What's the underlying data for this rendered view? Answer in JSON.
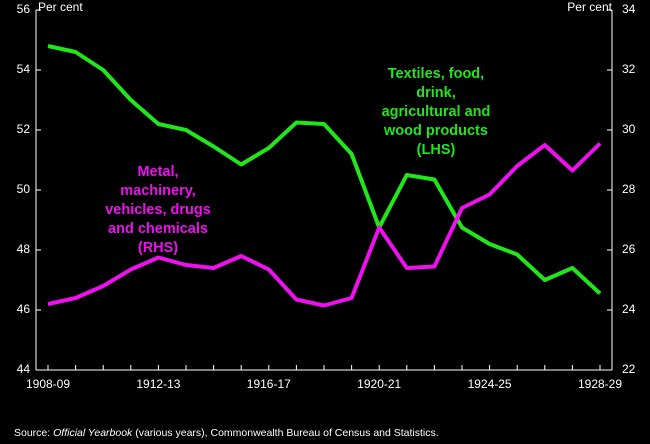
{
  "chart_data": {
    "type": "line",
    "categories": [
      "1908-09",
      null,
      null,
      null,
      "1912-13",
      null,
      null,
      null,
      "1916-17",
      null,
      null,
      null,
      "1920-21",
      null,
      null,
      null,
      "1924-25",
      null,
      null,
      null,
      "1928-29"
    ],
    "series": [
      {
        "name": "Textiles, food, drink, agricultural and wood products (LHS)",
        "label_lines": [
          "Textiles, food,",
          "drink,",
          "agricultural and",
          "wood products",
          "(LHS)"
        ],
        "color": "#22e61c",
        "axis": "y",
        "values": [
          54.8,
          54.6,
          54.0,
          53.0,
          52.2,
          52.0,
          51.45,
          50.85,
          51.4,
          52.25,
          52.2,
          51.2,
          48.75,
          50.5,
          50.35,
          48.75,
          48.2,
          47.85,
          47.0,
          47.4,
          46.55
        ]
      },
      {
        "name": "Metal, machinery, vehicles, drugs and chemicals (RHS)",
        "label_lines": [
          "Metal,",
          "machinery,",
          "vehicles, drugs",
          "and chemicals",
          "(RHS)"
        ],
        "color": "#ee10ee",
        "axis": "y2",
        "values": [
          24.2,
          24.4,
          24.8,
          25.35,
          25.75,
          25.5,
          25.4,
          25.8,
          25.35,
          24.35,
          24.15,
          24.4,
          26.75,
          25.4,
          25.45,
          27.4,
          27.85,
          28.8,
          29.5,
          28.65,
          29.55
        ]
      }
    ],
    "y_label": "Per cent",
    "y2_label": "Per cent",
    "ylim": [
      44,
      56
    ],
    "yticks": [
      44,
      46,
      48,
      50,
      52,
      54,
      56
    ],
    "y2lim": [
      22,
      34
    ],
    "y2ticks": [
      22,
      24,
      26,
      28,
      30,
      32,
      34
    ],
    "source": [
      "Source: ",
      "Official Yearbook",
      " (various years), Commonwealth Bureau of Census and Statistics."
    ]
  }
}
